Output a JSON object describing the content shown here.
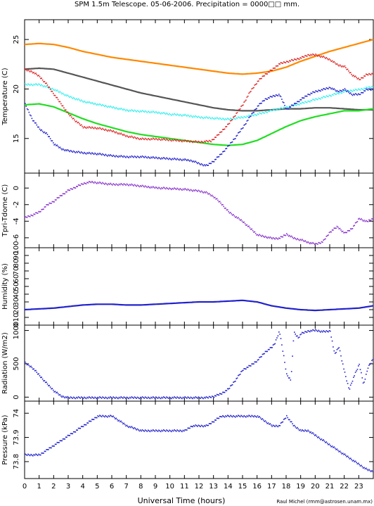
{
  "title": "SPM 1.5m Telescope. 05-06-2006. Precipitation = 0000□□ mm.",
  "credit": "Raul Michel (rmm@astrosen.unam.mx)",
  "chart_data": {
    "type": "line",
    "xlabel": "Universal Time (hours)",
    "xlim": [
      0,
      24
    ],
    "xticks": [
      "0",
      "1",
      "2",
      "3",
      "4",
      "5",
      "6",
      "7",
      "8",
      "9",
      "10",
      "11",
      "12",
      "13",
      "14",
      "15",
      "16",
      "17",
      "18",
      "19",
      "20",
      "21",
      "22",
      "23"
    ],
    "panels": [
      {
        "name": "temperature",
        "ylabel": "Temperature (C)",
        "ylim": [
          11.5,
          27
        ],
        "yticks": [
          15,
          20,
          25
        ],
        "series": [
          {
            "color": "#ff8800",
            "style": "line",
            "x": [
              0,
              1,
              2,
              3,
              4,
              5,
              6,
              7,
              8,
              9,
              10,
              11,
              12,
              13,
              14,
              15,
              16,
              17,
              18,
              19,
              20,
              21,
              22,
              23,
              24
            ],
            "y": [
              24.5,
              24.6,
              24.5,
              24.2,
              23.8,
              23.5,
              23.2,
              23.0,
              22.8,
              22.6,
              22.4,
              22.2,
              22.0,
              21.8,
              21.6,
              21.5,
              21.6,
              21.8,
              22.2,
              22.8,
              23.3,
              23.8,
              24.2,
              24.6,
              25.0
            ]
          },
          {
            "color": "#555555",
            "style": "line",
            "x": [
              0,
              1,
              2,
              3,
              4,
              5,
              6,
              7,
              8,
              9,
              10,
              11,
              12,
              13,
              14,
              15,
              16,
              17,
              18,
              19,
              20,
              21,
              22,
              23,
              24
            ],
            "y": [
              22.0,
              22.1,
              22.0,
              21.6,
              21.2,
              20.8,
              20.4,
              20.0,
              19.6,
              19.3,
              19.0,
              18.7,
              18.4,
              18.1,
              17.9,
              17.8,
              17.8,
              17.9,
              18.0,
              18.0,
              18.1,
              18.1,
              18.0,
              17.9,
              17.9
            ]
          },
          {
            "color": "#33eeee",
            "style": "dots",
            "x": [
              0,
              1,
              2,
              3,
              4,
              5,
              6,
              7,
              8,
              9,
              10,
              11,
              12,
              13,
              14,
              15,
              16,
              17,
              18,
              19,
              20,
              21,
              22,
              23,
              24
            ],
            "y": [
              20.5,
              20.5,
              20.0,
              19.3,
              18.8,
              18.5,
              18.2,
              17.9,
              17.8,
              17.7,
              17.5,
              17.4,
              17.2,
              17.1,
              17.0,
              17.2,
              17.5,
              17.9,
              18.2,
              18.6,
              19.0,
              19.4,
              19.8,
              20.0,
              20.3
            ]
          },
          {
            "color": "#22dd22",
            "style": "line",
            "x": [
              0,
              1,
              2,
              3,
              4,
              5,
              6,
              7,
              8,
              9,
              10,
              11,
              12,
              13,
              14,
              15,
              16,
              17,
              18,
              19,
              20,
              21,
              22,
              23,
              24
            ],
            "y": [
              18.4,
              18.5,
              18.2,
              17.6,
              17.0,
              16.5,
              16.1,
              15.7,
              15.4,
              15.2,
              15.0,
              14.8,
              14.6,
              14.4,
              14.3,
              14.4,
              14.8,
              15.5,
              16.2,
              16.8,
              17.2,
              17.5,
              17.8,
              17.8,
              18.0
            ]
          },
          {
            "color": "#dd2222",
            "style": "dots",
            "x": [
              0,
              0.5,
              1,
              1.5,
              2,
              2.5,
              3,
              3.5,
              4,
              5,
              6,
              7,
              8,
              9,
              10,
              11,
              12,
              12.8,
              13.2,
              14,
              15,
              15.5,
              16,
              16.5,
              17,
              17.5,
              18,
              18.5,
              19,
              19.5,
              20,
              20.5,
              21,
              21.5,
              22,
              22.5,
              23,
              23.5,
              24
            ],
            "y": [
              22.0,
              21.8,
              21.3,
              20.5,
              19.5,
              18.5,
              17.5,
              16.8,
              16.2,
              16.1,
              15.8,
              15.3,
              15.0,
              15.0,
              14.9,
              14.8,
              14.7,
              14.8,
              15.3,
              16.5,
              18.5,
              19.8,
              20.8,
              21.5,
              22.0,
              22.6,
              22.8,
              23.0,
              23.2,
              23.5,
              23.5,
              23.3,
              23.0,
              22.5,
              22.3,
              21.5,
              21.0,
              21.5,
              21.6
            ]
          },
          {
            "color": "#2222cc",
            "style": "dots",
            "x": [
              0,
              0.5,
              1,
              1.5,
              2,
              2.5,
              3,
              3.5,
              4,
              5,
              6,
              7,
              8,
              9,
              10,
              11,
              11.5,
              12,
              12.5,
              13,
              13.5,
              14,
              14.5,
              15,
              15.5,
              16,
              16.5,
              17,
              17.5,
              18,
              18.5,
              19,
              19.5,
              20,
              20.5,
              21,
              21.5,
              22,
              22.5,
              23,
              23.5,
              24
            ],
            "y": [
              18.5,
              17.0,
              16.0,
              15.5,
              14.5,
              14.0,
              13.8,
              13.7,
              13.6,
              13.5,
              13.3,
              13.2,
              13.2,
              13.1,
              13.0,
              12.9,
              12.8,
              12.5,
              12.3,
              12.8,
              13.5,
              14.3,
              15.2,
              16.2,
              17.3,
              18.3,
              19.0,
              19.3,
              19.5,
              18.0,
              18.5,
              19.0,
              19.5,
              19.8,
              20.0,
              20.2,
              19.8,
              20.0,
              19.5,
              19.5,
              20.0,
              20.0
            ]
          }
        ]
      },
      {
        "name": "tpri-tdome",
        "ylabel": "Tpri-Tdome (C)",
        "ylim": [
          -7.2,
          1.8
        ],
        "yticks": [
          -6,
          -4,
          -2,
          0
        ],
        "series": [
          {
            "color": "#8833cc",
            "style": "dots",
            "x": [
              0,
              0.5,
              1,
              1.5,
              2,
              2.5,
              3,
              3.5,
              4,
              4.5,
              5,
              6,
              7,
              8,
              9,
              10,
              11,
              12,
              12.5,
              13,
              13.5,
              14,
              14.5,
              15,
              15.5,
              16,
              16.5,
              17,
              17.5,
              18,
              18.5,
              19,
              19.5,
              20,
              20.5,
              21,
              21.5,
              22,
              22.5,
              23,
              23.5,
              24
            ],
            "y": [
              -3.5,
              -3.2,
              -2.8,
              -2.0,
              -1.5,
              -0.8,
              -0.2,
              0.2,
              0.6,
              0.8,
              0.7,
              0.5,
              0.5,
              0.3,
              0.1,
              0.0,
              -0.1,
              -0.3,
              -0.5,
              -1.0,
              -1.8,
              -2.8,
              -3.4,
              -4.0,
              -4.8,
              -5.6,
              -5.8,
              -6.0,
              -6.0,
              -5.5,
              -6.0,
              -6.2,
              -6.5,
              -6.7,
              -6.4,
              -5.2,
              -4.6,
              -5.4,
              -4.8,
              -3.6,
              -4.0,
              -3.6
            ]
          }
        ]
      },
      {
        "name": "humidity",
        "ylabel": "Humidity (%)",
        "ylim": [
          0,
          100
        ],
        "yticks": [
          0,
          10,
          20,
          30,
          40,
          50,
          60,
          70,
          80,
          90,
          100
        ],
        "series": [
          {
            "color": "#2222cc",
            "style": "line",
            "x": [
              0,
              1,
              2,
              3,
              4,
              5,
              6,
              7,
              8,
              9,
              10,
              11,
              12,
              13,
              14,
              15,
              16,
              17,
              18,
              19,
              20,
              21,
              22,
              23,
              24
            ],
            "y": [
              20,
              21,
              22,
              24,
              26,
              27,
              27,
              26,
              26,
              27,
              28,
              29,
              30,
              30,
              31,
              32,
              30,
              25,
              22,
              20,
              19,
              20,
              21,
              22,
              25
            ]
          }
        ]
      },
      {
        "name": "radiation",
        "ylabel": "Radiation (W/m2)",
        "ylim": [
          -60,
          1080
        ],
        "yticks": [
          0,
          500,
          1000
        ],
        "series": [
          {
            "color": "#2222cc",
            "style": "dots",
            "x": [
              0,
              0.5,
              1,
              1.5,
              2,
              2.5,
              3,
              4,
              5,
              6,
              7,
              8,
              9,
              10,
              11,
              12,
              12.5,
              13,
              13.5,
              14,
              14.5,
              15,
              15.5,
              16,
              16.5,
              17,
              17.2,
              17.5,
              17.8,
              18,
              18.3,
              18.5,
              18.8,
              19,
              19.5,
              20,
              20.5,
              21,
              21.3,
              21.6,
              22,
              22.3,
              22.6,
              23,
              23.3,
              23.6,
              24
            ],
            "y": [
              520,
              450,
              330,
              210,
              100,
              20,
              0,
              0,
              0,
              0,
              0,
              0,
              0,
              0,
              0,
              0,
              0,
              20,
              60,
              130,
              270,
              420,
              480,
              560,
              680,
              760,
              820,
              1000,
              620,
              350,
              260,
              980,
              900,
              960,
              1000,
              1010,
              990,
              1000,
              650,
              760,
              370,
              120,
              300,
              500,
              200,
              450,
              600
            ]
          }
        ]
      },
      {
        "name": "pressure",
        "ylabel": "Pressure (kPa)",
        "ylim": [
          73.73,
          74.05
        ],
        "yticks": [
          73.8,
          73.9,
          74
        ],
        "series": [
          {
            "color": "#2222cc",
            "style": "dots",
            "x": [
              0,
              1,
              1.5,
              2,
              2.5,
              3,
              3.5,
              4,
              4.5,
              5,
              6,
              6.5,
              7,
              8,
              9,
              10,
              11,
              11.5,
              12,
              12.5,
              13,
              13.5,
              14,
              15,
              16,
              16.5,
              17,
              17.5,
              18,
              18.5,
              19,
              19.5,
              20,
              20.5,
              21,
              21.5,
              22,
              22.5,
              23,
              23.5,
              24
            ],
            "y": [
              73.83,
              73.83,
              73.85,
              73.87,
              73.89,
              73.91,
              73.93,
              73.95,
              73.97,
              73.99,
              73.99,
              73.97,
              73.95,
              73.93,
              73.93,
              73.93,
              73.93,
              73.95,
              73.95,
              73.95,
              73.97,
              73.99,
              73.99,
              73.99,
              73.99,
              73.97,
              73.95,
              73.95,
              73.99,
              73.95,
              73.93,
              73.93,
              73.91,
              73.89,
              73.87,
              73.85,
              73.83,
              73.81,
              73.79,
              73.77,
              73.76
            ]
          }
        ]
      }
    ]
  }
}
